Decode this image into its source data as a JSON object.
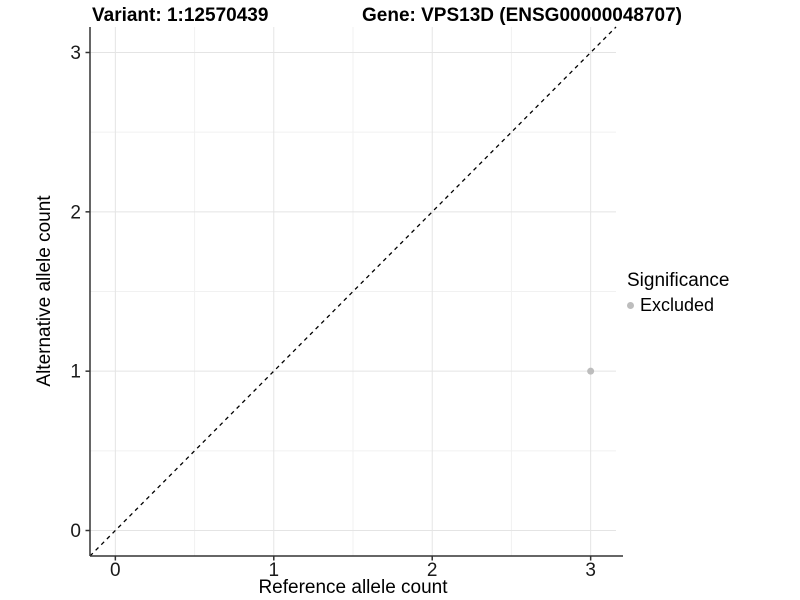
{
  "titles": {
    "variant": "Variant: 1:12570439",
    "gene": "Gene: VPS13D (ENSG00000048707)"
  },
  "axes": {
    "x_label": "Reference allele count",
    "y_label": "Alternative allele count"
  },
  "legend": {
    "title": "Significance",
    "items": [
      {
        "label": "Excluded",
        "color": "#bdbdbd",
        "marker": "dot"
      }
    ]
  },
  "chart_data": {
    "type": "scatter",
    "title": "Variant: 1:12570439   Gene: VPS13D (ENSG00000048707)",
    "xlabel": "Reference allele count",
    "ylabel": "Alternative allele count",
    "xlim": [
      -0.16,
      3.16
    ],
    "ylim": [
      -0.16,
      3.16
    ],
    "xticks": [
      0,
      1,
      2,
      3
    ],
    "yticks": [
      0,
      1,
      2,
      3
    ],
    "minor_gridlines_x": [
      0.5,
      1.5,
      2.5
    ],
    "minor_gridlines_y": [
      0.5,
      1.5,
      2.5
    ],
    "grid": "major+minor",
    "legend_position": "right",
    "series": [
      {
        "name": "Excluded",
        "color": "#bdbdbd",
        "points": [
          {
            "x": 3,
            "y": 1
          }
        ]
      }
    ],
    "reference_line": {
      "style": "dashed",
      "slope": 1,
      "intercept": 0,
      "color": "#000000"
    }
  },
  "colors": {
    "background": "#ffffff",
    "major_grid": "#e4e4e4",
    "minor_grid": "#f1f1f1",
    "axis_line": "#333333",
    "tick_mark": "#333333",
    "tick_label": "#1a1a1a",
    "point": "#bdbdbd",
    "identity_line": "#000000"
  }
}
